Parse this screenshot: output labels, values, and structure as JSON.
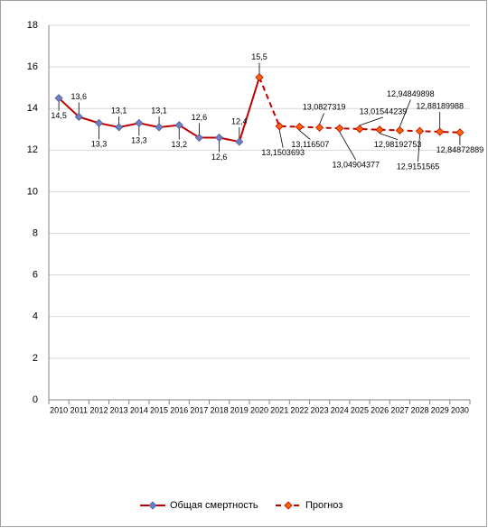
{
  "chart_data": {
    "type": "line",
    "categories": [
      "2010",
      "2011",
      "2012",
      "2013",
      "2014",
      "2015",
      "2016",
      "2017",
      "2018",
      "2019",
      "2020",
      "2021",
      "2022",
      "2023",
      "2024",
      "2025",
      "2026",
      "2027",
      "2028",
      "2029",
      "2030"
    ],
    "series": [
      {
        "name": "Общая смертность",
        "color": "#c00000",
        "marker_color": "#6f7fc0",
        "dashed": false,
        "values": [
          14.5,
          13.6,
          13.3,
          13.1,
          13.3,
          13.1,
          13.2,
          12.6,
          12.6,
          12.4,
          15.5,
          null,
          null,
          null,
          null,
          null,
          null,
          null,
          null,
          null,
          null
        ],
        "value_labels": [
          "14,5",
          "13,6",
          "13,3",
          "13,1",
          "13,3",
          "13,1",
          "13,2",
          "12,6",
          "12,6",
          "12,4",
          "15,5",
          null,
          null,
          null,
          null,
          null,
          null,
          null,
          null,
          null,
          null
        ]
      },
      {
        "name": "Прогноз",
        "color": "#c00000",
        "marker_color": "#ff6600",
        "dashed": true,
        "values": [
          null,
          null,
          null,
          null,
          null,
          null,
          null,
          null,
          null,
          null,
          15.5,
          13.1503693,
          13.116507,
          13.0827319,
          13.04904377,
          13.01544239,
          12.98192753,
          12.94849898,
          12.9151565,
          12.88189988,
          12.84872889
        ],
        "value_labels": [
          null,
          null,
          null,
          null,
          null,
          null,
          null,
          null,
          null,
          null,
          null,
          "13,1503693",
          "13,116507",
          "13,0827319",
          "13,04904377",
          "13,01544239",
          "12,98192753",
          "12,94849898",
          "12,9151565",
          "12,88189988",
          "12,84872889"
        ]
      }
    ],
    "ylim": [
      0,
      18
    ],
    "yticks": [
      0,
      2,
      4,
      6,
      8,
      10,
      12,
      14,
      16,
      18
    ],
    "grid": true,
    "legend": "bottom"
  }
}
